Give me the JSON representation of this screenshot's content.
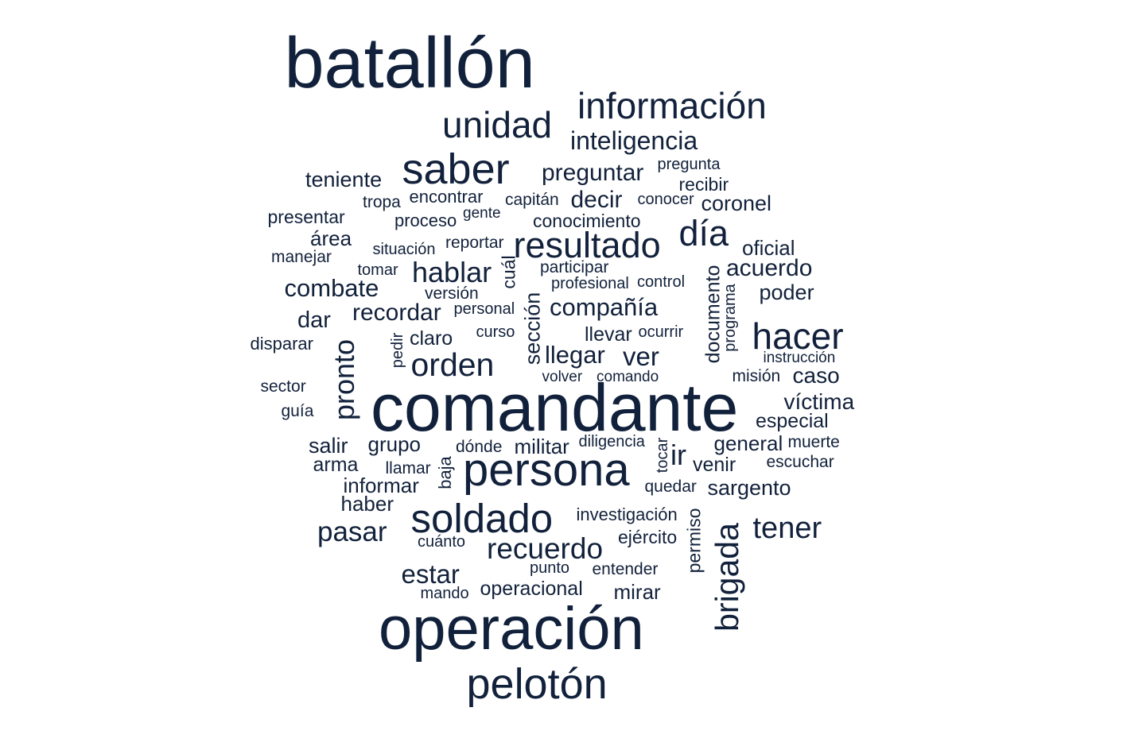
{
  "word_color": "#12213b",
  "words": [
    {
      "text": "batallón"
    },
    {
      "text": "información"
    },
    {
      "text": "unidad"
    },
    {
      "text": "inteligencia"
    },
    {
      "text": "saber"
    },
    {
      "text": "preguntar"
    },
    {
      "text": "pregunta"
    },
    {
      "text": "teniente"
    },
    {
      "text": "recibir"
    },
    {
      "text": "tropa"
    },
    {
      "text": "encontrar"
    },
    {
      "text": "capitán"
    },
    {
      "text": "decir"
    },
    {
      "text": "conocer"
    },
    {
      "text": "coronel"
    },
    {
      "text": "presentar"
    },
    {
      "text": "gente"
    },
    {
      "text": "proceso"
    },
    {
      "text": "conocimiento"
    },
    {
      "text": "área"
    },
    {
      "text": "día"
    },
    {
      "text": "situación"
    },
    {
      "text": "reportar"
    },
    {
      "text": "resultado"
    },
    {
      "text": "oficial"
    },
    {
      "text": "manejar"
    },
    {
      "text": "tomar"
    },
    {
      "text": "participar"
    },
    {
      "text": "acuerdo"
    },
    {
      "text": "hablar"
    },
    {
      "text": "cuál"
    },
    {
      "text": "profesional"
    },
    {
      "text": "control"
    },
    {
      "text": "combate"
    },
    {
      "text": "versión"
    },
    {
      "text": "poder"
    },
    {
      "text": "compañía"
    },
    {
      "text": "recordar"
    },
    {
      "text": "personal"
    },
    {
      "text": "dar"
    },
    {
      "text": "curso"
    },
    {
      "text": "llevar"
    },
    {
      "text": "ocurrir"
    },
    {
      "text": "hacer"
    },
    {
      "text": "claro"
    },
    {
      "text": "disparar"
    },
    {
      "text": "documento"
    },
    {
      "text": "programa"
    },
    {
      "text": "sección"
    },
    {
      "text": "pronto"
    },
    {
      "text": "pedir"
    },
    {
      "text": "llegar"
    },
    {
      "text": "ver"
    },
    {
      "text": "instrucción"
    },
    {
      "text": "orden"
    },
    {
      "text": "volver"
    },
    {
      "text": "comando"
    },
    {
      "text": "misión"
    },
    {
      "text": "caso"
    },
    {
      "text": "sector"
    },
    {
      "text": "víctima"
    },
    {
      "text": "comandante"
    },
    {
      "text": "guía"
    },
    {
      "text": "especial"
    },
    {
      "text": "salir"
    },
    {
      "text": "grupo"
    },
    {
      "text": "dónde"
    },
    {
      "text": "militar"
    },
    {
      "text": "diligencia"
    },
    {
      "text": "general"
    },
    {
      "text": "muerte"
    },
    {
      "text": "tocar"
    },
    {
      "text": "ir"
    },
    {
      "text": "arma"
    },
    {
      "text": "persona"
    },
    {
      "text": "venir"
    },
    {
      "text": "escuchar"
    },
    {
      "text": "llamar"
    },
    {
      "text": "baja"
    },
    {
      "text": "informar"
    },
    {
      "text": "quedar"
    },
    {
      "text": "sargento"
    },
    {
      "text": "haber"
    },
    {
      "text": "investigación"
    },
    {
      "text": "permiso"
    },
    {
      "text": "soldado"
    },
    {
      "text": "pasar"
    },
    {
      "text": "tener"
    },
    {
      "text": "brigada"
    },
    {
      "text": "cuánto"
    },
    {
      "text": "ejército"
    },
    {
      "text": "recuerdo"
    },
    {
      "text": "punto"
    },
    {
      "text": "entender"
    },
    {
      "text": "estar"
    },
    {
      "text": "mando"
    },
    {
      "text": "operacional"
    },
    {
      "text": "mirar"
    },
    {
      "text": "operación"
    },
    {
      "text": "pelotón"
    }
  ]
}
